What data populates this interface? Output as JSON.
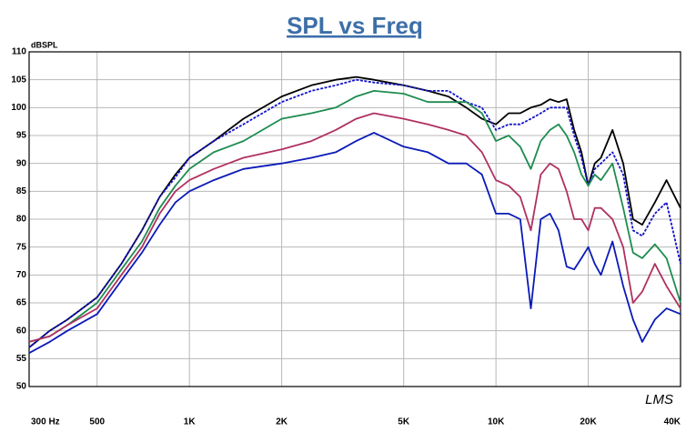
{
  "chart_data": {
    "type": "line",
    "title": "SPL vs Freq",
    "y_label": "dBSPL",
    "watermark": "LMS",
    "log_x": true,
    "grid": true,
    "x": [
      300,
      350,
      400,
      500,
      600,
      700,
      800,
      900,
      1000,
      1200,
      1500,
      2000,
      2500,
      3000,
      3500,
      4000,
      5000,
      6000,
      7000,
      8000,
      9000,
      10000,
      11000,
      12000,
      13000,
      14000,
      15000,
      16000,
      17000,
      18000,
      19000,
      20000,
      21000,
      22000,
      24000,
      26000,
      28000,
      30000,
      33000,
      36000,
      40000
    ],
    "series": [
      {
        "color": "#000000",
        "dashed": false,
        "values": [
          57,
          60,
          62,
          66,
          72,
          78,
          84,
          88,
          91,
          94,
          98,
          102,
          104,
          105,
          105.5,
          105,
          104,
          103,
          102,
          100,
          98,
          97,
          99,
          99,
          100,
          100.5,
          101.5,
          101,
          101.5,
          96,
          92,
          86,
          90,
          91,
          96,
          90,
          80,
          79,
          83,
          87,
          82
        ]
      },
      {
        "color": "#1414c8",
        "dashed": true,
        "values": [
          57,
          60,
          62,
          66,
          72,
          78,
          84,
          87.5,
          91,
          94,
          97,
          101,
          103,
          104,
          105,
          104.5,
          104,
          103,
          103,
          101,
          100,
          96,
          97,
          97,
          98,
          99,
          100,
          100,
          100,
          95,
          91,
          86,
          89,
          90,
          92,
          88,
          78,
          77,
          81,
          83,
          72
        ]
      },
      {
        "color": "#1e8c50",
        "dashed": false,
        "values": [
          58,
          59,
          61,
          65,
          71,
          76,
          82,
          86,
          89,
          92,
          94,
          98,
          99,
          100,
          102,
          103,
          102.5,
          101,
          101,
          101,
          99,
          94,
          95,
          93,
          89,
          94,
          96,
          97,
          95,
          92,
          88,
          86,
          88,
          87,
          90,
          82,
          74,
          73,
          75.5,
          73,
          65
        ]
      },
      {
        "color": "#b03062",
        "dashed": false,
        "values": [
          58,
          59,
          61,
          64,
          70,
          75,
          81,
          85,
          87,
          89,
          91,
          92.5,
          94,
          96,
          98,
          99,
          98,
          97,
          96,
          95,
          92,
          87,
          86,
          84,
          78,
          88,
          90,
          89,
          85,
          80,
          80,
          78,
          82,
          82,
          80,
          75,
          65,
          67,
          72,
          68,
          64
        ]
      },
      {
        "color": "#0a1ab8",
        "dashed": false,
        "values": [
          56,
          58,
          60,
          63,
          69,
          74,
          79,
          83,
          85,
          87,
          89,
          90,
          91,
          92,
          94,
          95.5,
          93,
          92,
          90,
          90,
          88,
          81,
          81,
          80,
          64,
          80,
          81,
          78,
          71.5,
          71,
          73,
          75,
          72,
          70,
          76,
          68,
          62,
          58,
          62,
          64,
          63
        ]
      }
    ],
    "xlim": [
      300,
      40000
    ],
    "xticks": [
      {
        "value": 300,
        "label": "300  Hz"
      },
      500,
      {
        "value": 1000,
        "label": "1K"
      },
      {
        "value": 2000,
        "label": "2K"
      },
      {
        "value": 5000,
        "label": "5K"
      },
      {
        "value": 10000,
        "label": "10K"
      },
      {
        "value": 20000,
        "label": "20K"
      },
      {
        "value": 40000,
        "label": "40K"
      }
    ],
    "ylim": [
      50,
      110
    ],
    "yticks": [
      50,
      55,
      60,
      65,
      70,
      75,
      80,
      85,
      90,
      95,
      100,
      105,
      110
    ]
  }
}
